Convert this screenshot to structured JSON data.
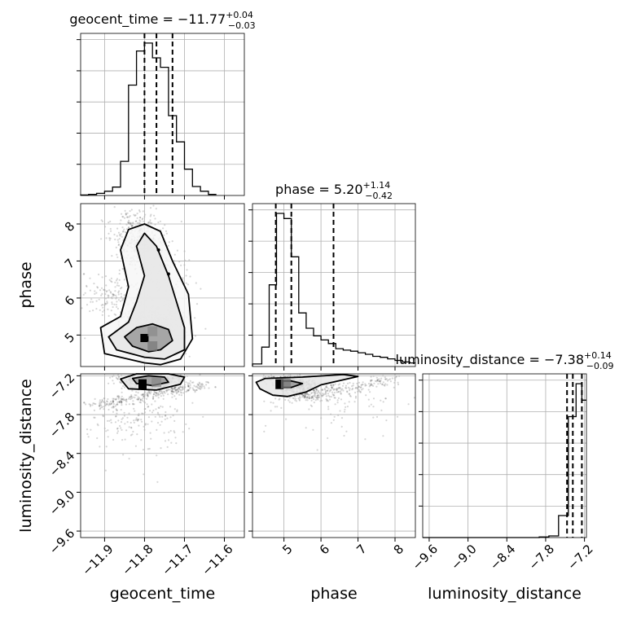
{
  "chart_data": {
    "type": "corner",
    "parameters": [
      "geocent_time",
      "phase",
      "luminosity_distance"
    ],
    "titles": [
      {
        "label": "geocent_time = −11.77",
        "plus": "+0.04",
        "minus": "−0.03"
      },
      {
        "label": "phase = 5.20",
        "plus": "+1.14",
        "minus": "−0.42"
      },
      {
        "label": "luminosity_distance = −7.38",
        "plus": "+0.14",
        "minus": "−0.09"
      }
    ],
    "ranges": {
      "geocent_time": [
        -11.96,
        -11.55
      ],
      "phase": [
        4.15,
        8.55
      ],
      "luminosity_distance": [
        -9.7,
        -7.17
      ]
    },
    "ticks": {
      "geocent_time": [
        "−11.9",
        "−11.8",
        "−11.7",
        "−11.6"
      ],
      "phase": [
        "5",
        "6",
        "7",
        "8"
      ],
      "luminosity_distance": [
        "−9.6",
        "−9.0",
        "−8.4",
        "−7.8",
        "−7.2"
      ]
    },
    "tick_values": {
      "geocent_time": [
        -11.9,
        -11.8,
        -11.7,
        -11.6
      ],
      "phase": [
        5,
        6,
        7,
        8
      ],
      "luminosity_distance": [
        -9.6,
        -9.0,
        -8.4,
        -7.8,
        -7.2
      ]
    },
    "quantiles": {
      "geocent_time": [
        -11.8,
        -11.77,
        -11.73
      ],
      "phase": [
        4.78,
        5.2,
        6.34
      ],
      "luminosity_distance": [
        -7.47,
        -7.38,
        -7.24
      ]
    },
    "histograms": {
      "geocent_time": {
        "edges": [
          -11.96,
          -11.94,
          -11.92,
          -11.9,
          -11.88,
          -11.86,
          -11.84,
          -11.82,
          -11.8,
          -11.78,
          -11.76,
          -11.74,
          -11.72,
          -11.7,
          -11.68,
          -11.66,
          -11.64,
          -11.62
        ],
        "counts": [
          1,
          2,
          4,
          8,
          16,
          65,
          210,
          275,
          290,
          262,
          244,
          152,
          102,
          50,
          17,
          8,
          2
        ]
      },
      "phase": {
        "edges": [
          4.15,
          4.4,
          4.6,
          4.8,
          5.0,
          5.2,
          5.4,
          5.6,
          5.8,
          6.0,
          6.2,
          6.4,
          6.6,
          6.8,
          7.0,
          7.2,
          7.4,
          7.6,
          7.8,
          8.0,
          8.2,
          8.4,
          8.55
        ],
        "counts": [
          5,
          38,
          160,
          300,
          290,
          215,
          105,
          75,
          60,
          52,
          45,
          35,
          32,
          30,
          27,
          24,
          20,
          18,
          15,
          12,
          9,
          7
        ]
      },
      "luminosity_distance": {
        "edges": [
          -9.7,
          -9.55,
          -9.4,
          -9.25,
          -9.1,
          -8.95,
          -8.8,
          -8.65,
          -8.5,
          -8.35,
          -8.2,
          -8.05,
          -7.9,
          -7.75,
          -7.6,
          -7.45,
          -7.33,
          -7.24,
          -7.17
        ],
        "counts": [
          0,
          0,
          0,
          0,
          0,
          0,
          0,
          0,
          0,
          0,
          0,
          0,
          1,
          3,
          40,
          220,
          280,
          250
        ]
      }
    },
    "contours_2d": [
      {
        "x": "geocent_time",
        "y": "phase",
        "levels": [
          [
            [
              -11.79,
              4.55
            ],
            [
              -11.83,
              4.7
            ],
            [
              -11.85,
              4.95
            ],
            [
              -11.82,
              5.2
            ],
            [
              -11.78,
              5.3
            ],
            [
              -11.74,
              5.15
            ],
            [
              -11.73,
              4.85
            ],
            [
              -11.76,
              4.6
            ]
          ],
          [
            [
              -11.8,
              4.4
            ],
            [
              -11.87,
              4.6
            ],
            [
              -11.89,
              4.95
            ],
            [
              -11.84,
              5.35
            ],
            [
              -11.82,
              5.9
            ],
            [
              -11.8,
              6.6
            ],
            [
              -11.82,
              7.4
            ],
            [
              -11.8,
              7.75
            ],
            [
              -11.77,
              7.4
            ],
            [
              -11.74,
              6.6
            ],
            [
              -11.72,
              5.9
            ],
            [
              -11.7,
              5.2
            ],
            [
              -11.7,
              4.6
            ],
            [
              -11.75,
              4.35
            ]
          ],
          [
            [
              -11.8,
              4.25
            ],
            [
              -11.9,
              4.5
            ],
            [
              -11.91,
              5.2
            ],
            [
              -11.86,
              5.5
            ],
            [
              -11.84,
              6.3
            ],
            [
              -11.86,
              7.3
            ],
            [
              -11.84,
              7.85
            ],
            [
              -11.8,
              8.0
            ],
            [
              -11.76,
              7.8
            ],
            [
              -11.73,
              7.0
            ],
            [
              -11.69,
              6.1
            ],
            [
              -11.68,
              4.9
            ],
            [
              -11.71,
              4.35
            ],
            [
              -11.76,
              4.2
            ]
          ]
        ]
      },
      {
        "x": "geocent_time",
        "y": "luminosity_distance",
        "levels": [
          [
            [
              -11.82,
              -7.32
            ],
            [
              -11.83,
              -7.24
            ],
            [
              -11.79,
              -7.2
            ],
            [
              -11.75,
              -7.22
            ],
            [
              -11.74,
              -7.3
            ],
            [
              -11.78,
              -7.35
            ]
          ],
          [
            [
              -11.84,
              -7.4
            ],
            [
              -11.86,
              -7.25
            ],
            [
              -11.82,
              -7.17
            ],
            [
              -11.74,
              -7.17
            ],
            [
              -11.7,
              -7.22
            ],
            [
              -11.71,
              -7.33
            ],
            [
              -11.77,
              -7.42
            ]
          ]
        ]
      },
      {
        "x": "phase",
        "y": "luminosity_distance",
        "levels": [
          [
            [
              4.8,
              -7.35
            ],
            [
              4.9,
              -7.28
            ],
            [
              5.2,
              -7.28
            ],
            [
              5.5,
              -7.32
            ],
            [
              5.2,
              -7.38
            ],
            [
              4.9,
              -7.38
            ]
          ],
          [
            [
              4.25,
              -7.3
            ],
            [
              4.5,
              -7.24
            ],
            [
              5.5,
              -7.22
            ],
            [
              6.6,
              -7.18
            ],
            [
              7.0,
              -7.21
            ],
            [
              6.0,
              -7.34
            ],
            [
              5.6,
              -7.45
            ],
            [
              5.1,
              -7.52
            ],
            [
              4.7,
              -7.5
            ],
            [
              4.35,
              -7.4
            ]
          ]
        ]
      }
    ],
    "grid": true
  }
}
